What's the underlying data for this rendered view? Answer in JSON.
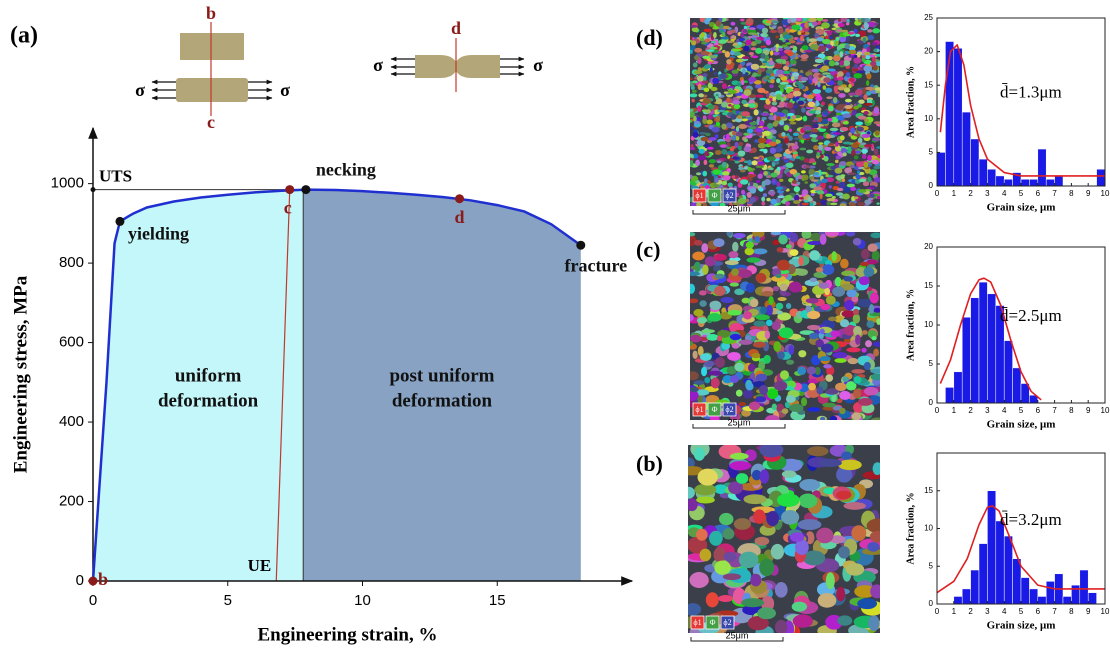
{
  "panel_labels": [
    "(a)",
    "(d)",
    "(c)",
    "(b)"
  ],
  "schematic": {
    "labels": [
      "b",
      "c",
      "d"
    ],
    "sigma": [
      "σ",
      "σ",
      "σ",
      "σ"
    ]
  },
  "micrographs": [
    {
      "legend": [
        "ϕ1",
        "Φ",
        "ϕ2"
      ],
      "scale": "25μm"
    },
    {
      "legend": [
        "ϕ1",
        "Φ",
        "ϕ2"
      ],
      "scale": "25μm"
    },
    {
      "legend": [
        "ϕ1",
        "Φ",
        "ϕ2"
      ],
      "scale": "25μm"
    }
  ],
  "chart_data": [
    {
      "type": "line",
      "xlabel": "Engineering strain, %",
      "ylabel": "Engineering stress, MPa",
      "xlim": [
        0,
        20
      ],
      "ylim": [
        0,
        1140
      ],
      "xticks": [
        0,
        5,
        10,
        15
      ],
      "yticks": [
        0,
        200,
        400,
        600,
        800,
        1000
      ],
      "series": [
        {
          "color": "#1f2fd0",
          "x": [
            0,
            0.2,
            0.5,
            0.8,
            1,
            1.5,
            2,
            3,
            4,
            5,
            6,
            7,
            7.9,
            9,
            10,
            11,
            12,
            13,
            14,
            15,
            16,
            17,
            18.1
          ],
          "values": [
            0,
            200,
            500,
            850,
            905,
            925,
            940,
            955,
            965,
            972,
            978,
            982,
            985,
            984,
            981,
            977,
            972,
            966,
            958,
            946,
            930,
            898,
            845
          ]
        }
      ],
      "regions": [
        {
          "label_lines": [
            "uniform",
            "deformation"
          ],
          "x0": 0,
          "x1": 7.8,
          "color": "#c4f7fa"
        },
        {
          "label_lines": [
            "post uniform",
            "deformation"
          ],
          "x0": 7.8,
          "x1": 18.1,
          "color": "#87a2c3"
        }
      ],
      "uts": {
        "label": "UTS",
        "value": 985
      },
      "ue": {
        "label": "UE",
        "x": 6.8,
        "color": "#c0392b"
      },
      "points": [
        {
          "label": "b",
          "x": 0,
          "y": 0,
          "color": "#8b1a1a"
        },
        {
          "label": "yielding",
          "x": 1,
          "y": 905,
          "color": "#111111"
        },
        {
          "label": "c",
          "x": 7.3,
          "y": 985,
          "color": "#8b1a1a"
        },
        {
          "label": "necking",
          "x": 7.9,
          "y": 985,
          "color": "#111111"
        },
        {
          "label": "d",
          "x": 13.6,
          "y": 962,
          "color": "#8b1a1a"
        },
        {
          "label": "fracture",
          "x": 18.1,
          "y": 845,
          "color": "#111111"
        }
      ]
    },
    {
      "type": "histogram",
      "xlabel": "Grain size, μm",
      "ylabel": "Area fraction, %",
      "annotation": "d̄=1.3μm",
      "color": "#1a1ae6",
      "xlim": [
        0,
        10
      ],
      "ylim": [
        0,
        25
      ],
      "xticks": [
        0,
        1,
        2,
        3,
        4,
        5,
        6,
        7,
        8,
        9,
        10
      ],
      "yticks": [
        0,
        5,
        10,
        15,
        20,
        25
      ],
      "bins": [
        0,
        0.5,
        1,
        1.5,
        2,
        2.5,
        3,
        3.5,
        4,
        4.5,
        5,
        5.5,
        6,
        6.5,
        7,
        7.5,
        8,
        8.5,
        9,
        9.5,
        10
      ],
      "values": [
        5,
        21.5,
        20.5,
        11,
        7,
        4,
        2.5,
        1.5,
        1,
        2,
        1,
        1,
        5.5,
        1,
        1.5,
        0,
        0,
        0,
        0,
        2.5
      ],
      "fit": {
        "color": "#e02020",
        "x": [
          0.2,
          0.5,
          0.8,
          1.2,
          1.6,
          2,
          2.5,
          3,
          4,
          5,
          6,
          8,
          10
        ],
        "values": [
          8,
          15,
          20,
          21,
          18,
          12,
          7,
          4,
          2,
          1.5,
          1.5,
          1.5,
          1.5
        ]
      }
    },
    {
      "type": "histogram",
      "xlabel": "Grain size, μm",
      "ylabel": "Area fraction, %",
      "annotation": "d̄=2.5μm",
      "color": "#1a1ae6",
      "xlim": [
        0,
        10
      ],
      "ylim": [
        0,
        20
      ],
      "xticks": [
        0,
        1,
        2,
        3,
        4,
        5,
        6,
        7,
        8,
        9,
        10
      ],
      "yticks": [
        0,
        5,
        10,
        15,
        20
      ],
      "bins": [
        0,
        0.5,
        1,
        1.5,
        2,
        2.5,
        3,
        3.5,
        4,
        4.5,
        5,
        5.5,
        6,
        6.5,
        7,
        7.5,
        8,
        8.5,
        9,
        9.5,
        10
      ],
      "values": [
        0,
        2,
        4,
        11,
        13.5,
        15.5,
        14,
        12.5,
        8,
        4.5,
        2.5,
        1,
        0,
        0,
        0,
        0,
        0,
        0,
        0,
        0
      ],
      "fit": {
        "color": "#e02020",
        "x": [
          0.2,
          0.8,
          1.4,
          2,
          2.5,
          2.8,
          3.2,
          3.8,
          4.4,
          5,
          5.6,
          6.2
        ],
        "values": [
          2.5,
          5.5,
          10,
          14,
          15.8,
          16,
          15.5,
          12.5,
          8,
          4,
          1.5,
          0.4
        ]
      }
    },
    {
      "type": "histogram",
      "xlabel": "Grain size, μm",
      "ylabel": "Area fraction, %",
      "annotation": "d̄=3.2μm",
      "color": "#1a1ae6",
      "xlim": [
        0,
        10
      ],
      "ylim": [
        0,
        20
      ],
      "xticks": [
        0,
        1,
        2,
        3,
        4,
        5,
        6,
        7,
        8,
        9,
        10
      ],
      "yticks": [
        0,
        5,
        10,
        15
      ],
      "bins": [
        0,
        0.5,
        1,
        1.5,
        2,
        2.5,
        3,
        3.5,
        4,
        4.5,
        5,
        5.5,
        6,
        6.5,
        7,
        7.5,
        8,
        8.5,
        9,
        9.5,
        10
      ],
      "values": [
        0,
        0,
        1,
        2,
        4.5,
        8,
        15,
        11,
        9,
        6,
        3.5,
        2,
        1,
        3,
        4,
        1,
        2.5,
        4.5,
        1.5,
        0
      ],
      "fit": {
        "color": "#e02020",
        "x": [
          0,
          1,
          1.8,
          2.5,
          3,
          3.3,
          3.7,
          4.3,
          5,
          6,
          7,
          8,
          9,
          10
        ],
        "values": [
          1.5,
          3,
          6,
          10.5,
          12.8,
          13,
          12.3,
          9,
          5,
          2.5,
          2,
          2,
          2,
          2
        ]
      }
    }
  ]
}
